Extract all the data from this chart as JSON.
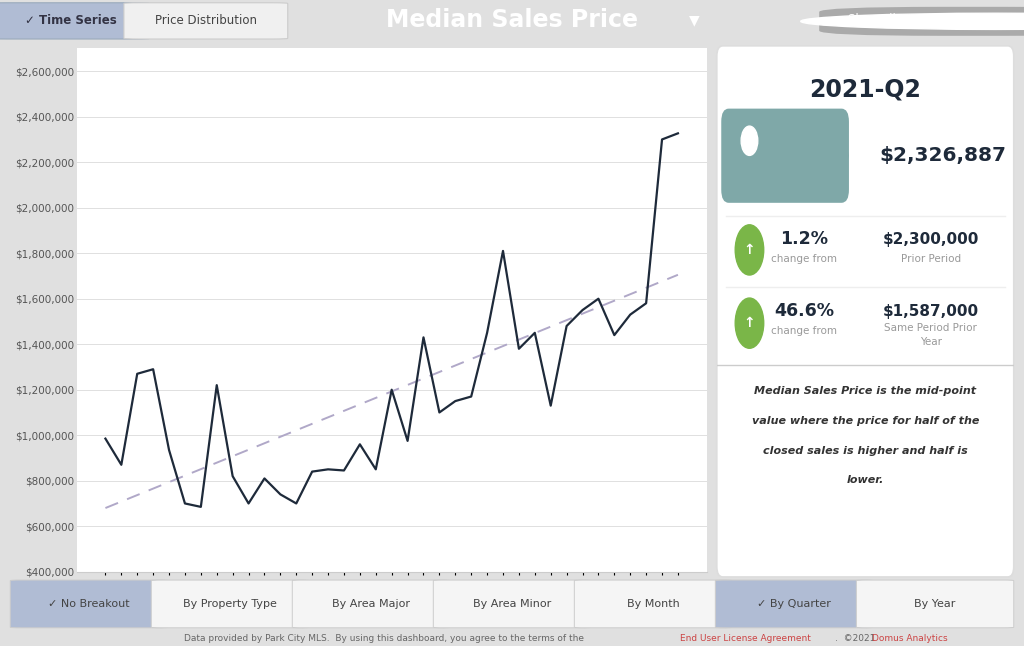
{
  "title": "Median Sales Price",
  "header_bg": "#78909c",
  "time_series_btn_bg": "#b0bcd4",
  "time_series_btn_text": "#333344",
  "price_dist_btn_bg": "#f0f0f0",
  "price_dist_btn_text": "#444444",
  "year_label": "2021-Q2",
  "main_value": "$2,326,887",
  "change1_pct": "1.2%",
  "change1_label": "change from",
  "change1_value": "$2,300,000",
  "change1_sublabel": "Prior Period",
  "change2_pct": "46.6%",
  "change2_label": "change from",
  "change2_value": "$1,587,000",
  "description": "Median Sales Price is the mid-point\nvalue where the price for half of the\nclosed sales is higher and half is\nlower.",
  "y_values": [
    985000,
    870000,
    1270000,
    1290000,
    935000,
    700000,
    685000,
    1220000,
    820000,
    700000,
    810000,
    740000,
    700000,
    840000,
    850000,
    845000,
    960000,
    850000,
    1200000,
    975000,
    1430000,
    1100000,
    1150000,
    1170000,
    1450000,
    1810000,
    1380000,
    1450000,
    1130000,
    1480000,
    1550000,
    1600000,
    1440000,
    1530000,
    1580000,
    2300000,
    2326887
  ],
  "line_color": "#1e2a3a",
  "trend_color": "#b0a8c8",
  "ylim_min": 400000,
  "ylim_max": 2700000,
  "y_ticks": [
    400000,
    600000,
    800000,
    1000000,
    1200000,
    1400000,
    1600000,
    1800000,
    2000000,
    2200000,
    2400000,
    2600000
  ],
  "bottom_buttons": [
    {
      "label": "✓ No Breakout",
      "active": true
    },
    {
      "label": "By Property Type",
      "active": false
    },
    {
      "label": "By Area Major",
      "active": false
    },
    {
      "label": "By Area Minor",
      "active": false
    },
    {
      "label": "By Month",
      "active": false
    },
    {
      "label": "✓ By Quarter",
      "active": true
    },
    {
      "label": "By Year",
      "active": false
    }
  ],
  "footer_link_color": "#cc4444",
  "footer_domus_color": "#cc4444",
  "tag_color": "#7fa8a8",
  "arrow_color": "#7ab648",
  "active_btn_color": "#b0bcd4",
  "inactive_btn_color": "#f5f5f5",
  "page_bg": "#e0e0e0",
  "chart_bg": "#ffffff",
  "panel_bg": "#ffffff"
}
